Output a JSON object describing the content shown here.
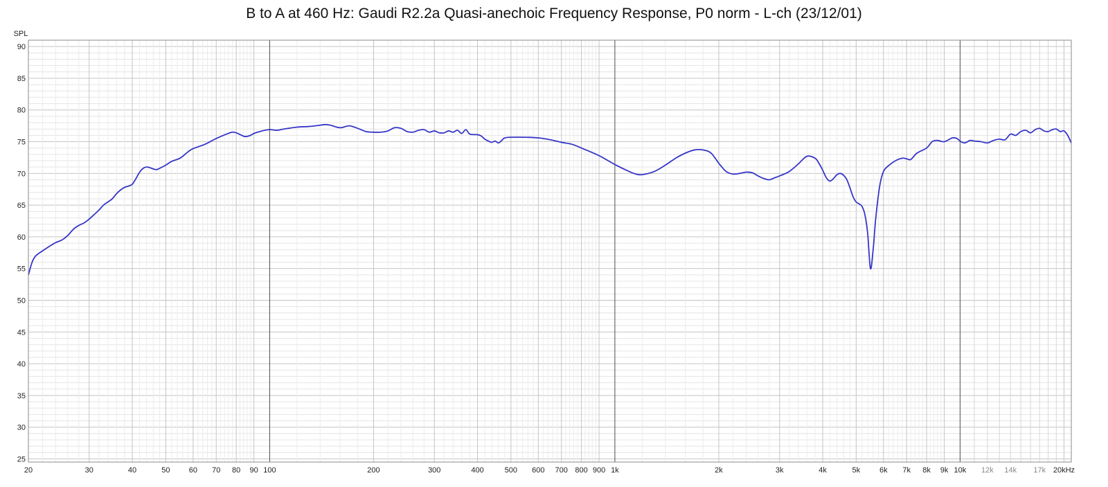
{
  "chart_data": {
    "type": "line",
    "title": "B to A at 460 Hz: Gaudi R2.2a Quasi-anechoic Frequency Response, P0 norm - L-ch (23/12/01)",
    "ylabel": "SPL",
    "xlabel": "",
    "x_scale": "log",
    "xlim": [
      20,
      21000
    ],
    "ylim": [
      24.5,
      91
    ],
    "grid": true,
    "y_ticks": [
      25,
      30,
      35,
      40,
      45,
      50,
      55,
      60,
      65,
      70,
      75,
      80,
      85,
      90
    ],
    "x_ticks": [
      {
        "value": 20,
        "label": "20"
      },
      {
        "value": 30,
        "label": "30"
      },
      {
        "value": 40,
        "label": "40"
      },
      {
        "value": 50,
        "label": "50"
      },
      {
        "value": 60,
        "label": "60"
      },
      {
        "value": 70,
        "label": "70"
      },
      {
        "value": 80,
        "label": "80"
      },
      {
        "value": 90,
        "label": "90"
      },
      {
        "value": 100,
        "label": "100"
      },
      {
        "value": 200,
        "label": "200"
      },
      {
        "value": 300,
        "label": "300"
      },
      {
        "value": 400,
        "label": "400"
      },
      {
        "value": 500,
        "label": "500"
      },
      {
        "value": 600,
        "label": "600"
      },
      {
        "value": 700,
        "label": "700"
      },
      {
        "value": 800,
        "label": "800"
      },
      {
        "value": 900,
        "label": "900"
      },
      {
        "value": 1000,
        "label": "1k"
      },
      {
        "value": 2000,
        "label": "2k"
      },
      {
        "value": 3000,
        "label": "3k"
      },
      {
        "value": 4000,
        "label": "4k"
      },
      {
        "value": 5000,
        "label": "5k"
      },
      {
        "value": 6000,
        "label": "6k"
      },
      {
        "value": 7000,
        "label": "7k"
      },
      {
        "value": 8000,
        "label": "8k"
      },
      {
        "value": 9000,
        "label": "9k"
      },
      {
        "value": 10000,
        "label": "10k"
      },
      {
        "value": 12000,
        "label": "12k",
        "faint": true
      },
      {
        "value": 14000,
        "label": "14k",
        "faint": true
      },
      {
        "value": 17000,
        "label": "17k",
        "faint": true
      },
      {
        "value": 20000,
        "label": "20kHz"
      }
    ],
    "series": [
      {
        "color": "#3535c8",
        "points": [
          [
            20,
            54
          ],
          [
            20.5,
            56
          ],
          [
            21,
            57
          ],
          [
            22,
            57.8
          ],
          [
            23,
            58.5
          ],
          [
            24,
            59.1
          ],
          [
            25,
            59.5
          ],
          [
            26,
            60.2
          ],
          [
            27,
            61.2
          ],
          [
            28,
            61.8
          ],
          [
            29,
            62.2
          ],
          [
            30,
            62.8
          ],
          [
            31,
            63.5
          ],
          [
            32,
            64.2
          ],
          [
            33,
            65
          ],
          [
            34,
            65.5
          ],
          [
            35,
            66
          ],
          [
            36,
            66.8
          ],
          [
            37,
            67.4
          ],
          [
            38,
            67.8
          ],
          [
            39,
            68
          ],
          [
            40,
            68.3
          ],
          [
            41,
            69.2
          ],
          [
            42,
            70.2
          ],
          [
            43,
            70.8
          ],
          [
            44,
            71
          ],
          [
            45,
            70.9
          ],
          [
            46,
            70.7
          ],
          [
            47,
            70.6
          ],
          [
            48,
            70.8
          ],
          [
            50,
            71.3
          ],
          [
            52,
            71.9
          ],
          [
            55,
            72.4
          ],
          [
            58,
            73.4
          ],
          [
            60,
            73.9
          ],
          [
            65,
            74.6
          ],
          [
            70,
            75.5
          ],
          [
            75,
            76.2
          ],
          [
            78,
            76.5
          ],
          [
            80,
            76.4
          ],
          [
            83,
            76
          ],
          [
            85,
            75.8
          ],
          [
            88,
            76
          ],
          [
            90,
            76.3
          ],
          [
            95,
            76.7
          ],
          [
            100,
            76.9
          ],
          [
            105,
            76.8
          ],
          [
            110,
            77
          ],
          [
            120,
            77.3
          ],
          [
            130,
            77.4
          ],
          [
            140,
            77.6
          ],
          [
            145,
            77.7
          ],
          [
            150,
            77.6
          ],
          [
            160,
            77.2
          ],
          [
            170,
            77.5
          ],
          [
            180,
            77.1
          ],
          [
            190,
            76.6
          ],
          [
            200,
            76.5
          ],
          [
            210,
            76.5
          ],
          [
            220,
            76.7
          ],
          [
            230,
            77.2
          ],
          [
            240,
            77.1
          ],
          [
            250,
            76.6
          ],
          [
            260,
            76.5
          ],
          [
            270,
            76.8
          ],
          [
            280,
            76.9
          ],
          [
            290,
            76.5
          ],
          [
            300,
            76.7
          ],
          [
            310,
            76.4
          ],
          [
            320,
            76.4
          ],
          [
            330,
            76.7
          ],
          [
            340,
            76.5
          ],
          [
            350,
            76.8
          ],
          [
            360,
            76.3
          ],
          [
            370,
            76.9
          ],
          [
            380,
            76.2
          ],
          [
            400,
            76.1
          ],
          [
            410,
            75.9
          ],
          [
            420,
            75.4
          ],
          [
            430,
            75.1
          ],
          [
            440,
            74.9
          ],
          [
            450,
            75.1
          ],
          [
            460,
            74.8
          ],
          [
            470,
            75.2
          ],
          [
            480,
            75.6
          ],
          [
            500,
            75.7
          ],
          [
            550,
            75.7
          ],
          [
            600,
            75.6
          ],
          [
            650,
            75.3
          ],
          [
            700,
            74.9
          ],
          [
            750,
            74.6
          ],
          [
            800,
            74
          ],
          [
            900,
            72.8
          ],
          [
            1000,
            71.4
          ],
          [
            1100,
            70.3
          ],
          [
            1150,
            69.9
          ],
          [
            1200,
            69.8
          ],
          [
            1300,
            70.3
          ],
          [
            1400,
            71.3
          ],
          [
            1500,
            72.4
          ],
          [
            1600,
            73.2
          ],
          [
            1700,
            73.7
          ],
          [
            1800,
            73.7
          ],
          [
            1900,
            73.2
          ],
          [
            2000,
            71.6
          ],
          [
            2100,
            70.3
          ],
          [
            2200,
            69.9
          ],
          [
            2300,
            70
          ],
          [
            2400,
            70.2
          ],
          [
            2500,
            70.1
          ],
          [
            2600,
            69.6
          ],
          [
            2700,
            69.2
          ],
          [
            2800,
            69
          ],
          [
            2900,
            69.3
          ],
          [
            3000,
            69.6
          ],
          [
            3200,
            70.3
          ],
          [
            3400,
            71.5
          ],
          [
            3600,
            72.7
          ],
          [
            3800,
            72.4
          ],
          [
            3900,
            71.6
          ],
          [
            4000,
            70.5
          ],
          [
            4100,
            69.3
          ],
          [
            4200,
            68.8
          ],
          [
            4300,
            69.2
          ],
          [
            4400,
            69.8
          ],
          [
            4500,
            70
          ],
          [
            4600,
            69.7
          ],
          [
            4700,
            69
          ],
          [
            4800,
            67.7
          ],
          [
            4900,
            66.3
          ],
          [
            5000,
            65.5
          ],
          [
            5100,
            65.2
          ],
          [
            5200,
            64.8
          ],
          [
            5300,
            63.5
          ],
          [
            5400,
            60.5
          ],
          [
            5500,
            55
          ],
          [
            5600,
            58
          ],
          [
            5700,
            63
          ],
          [
            5850,
            68
          ],
          [
            6000,
            70.3
          ],
          [
            6200,
            71.2
          ],
          [
            6500,
            72
          ],
          [
            6800,
            72.4
          ],
          [
            7000,
            72.3
          ],
          [
            7200,
            72.2
          ],
          [
            7500,
            73.2
          ],
          [
            8000,
            74
          ],
          [
            8300,
            75
          ],
          [
            8600,
            75.2
          ],
          [
            9000,
            75
          ],
          [
            9500,
            75.6
          ],
          [
            9800,
            75.5
          ],
          [
            10000,
            75.1
          ],
          [
            10300,
            74.8
          ],
          [
            10700,
            75.2
          ],
          [
            11000,
            75.1
          ],
          [
            11500,
            75
          ],
          [
            12000,
            74.8
          ],
          [
            12500,
            75.2
          ],
          [
            13000,
            75.4
          ],
          [
            13500,
            75.3
          ],
          [
            14000,
            76.2
          ],
          [
            14500,
            76
          ],
          [
            15000,
            76.6
          ],
          [
            15500,
            76.8
          ],
          [
            16000,
            76.4
          ],
          [
            16500,
            76.9
          ],
          [
            17000,
            77.1
          ],
          [
            17500,
            76.7
          ],
          [
            18000,
            76.6
          ],
          [
            18500,
            76.9
          ],
          [
            19000,
            77
          ],
          [
            19500,
            76.6
          ],
          [
            20000,
            76.7
          ],
          [
            20500,
            76
          ],
          [
            21000,
            74.8
          ]
        ]
      }
    ]
  }
}
